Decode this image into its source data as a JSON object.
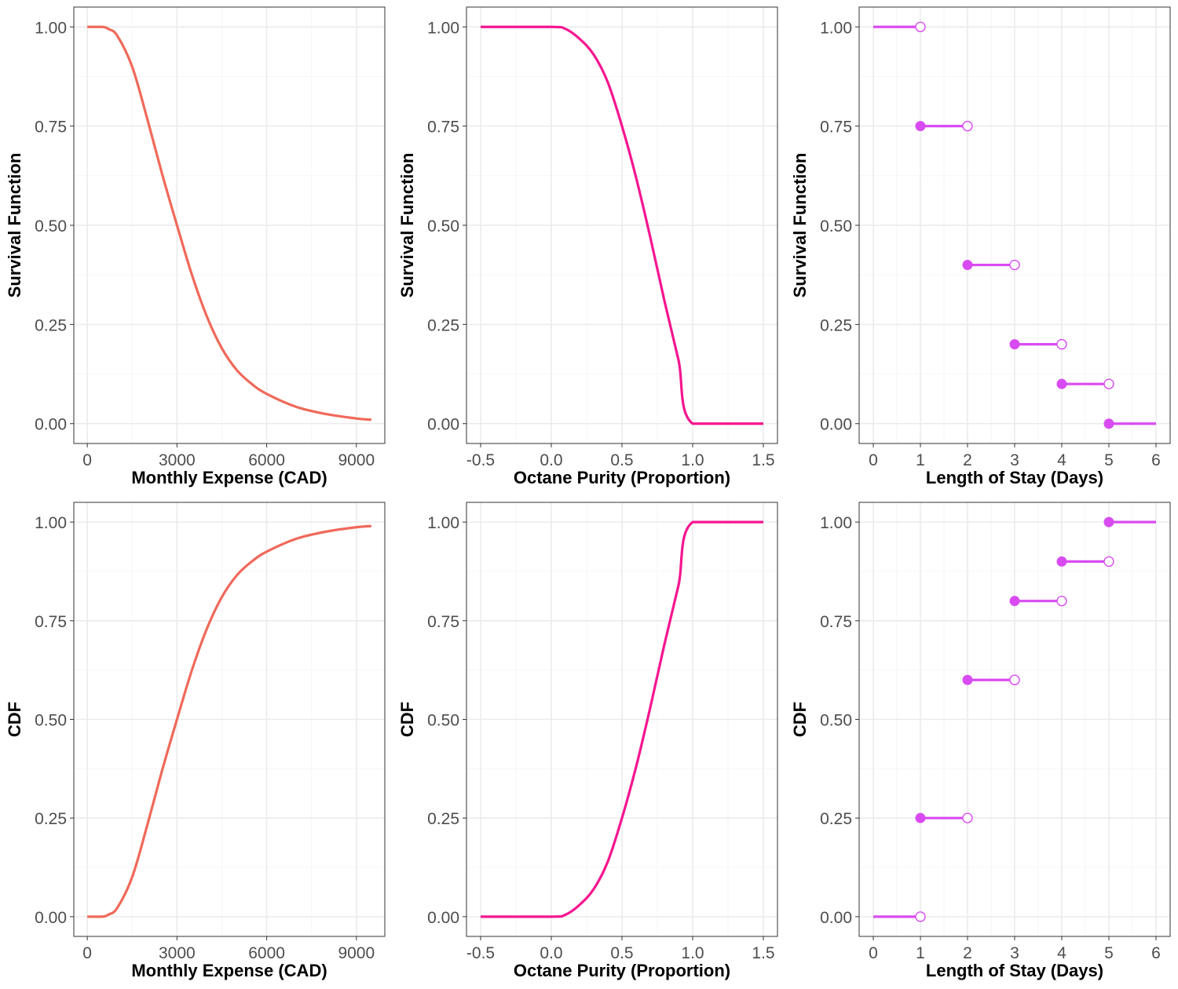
{
  "chart_data": [
    {
      "type": "line",
      "panel": "top-left",
      "xlabel": "Monthly Expense (CAD)",
      "ylabel": "Survival Function",
      "xlim": [
        -450,
        9950
      ],
      "ylim": [
        -0.05,
        1.05
      ],
      "xticks": [
        0,
        3000,
        6000,
        9000
      ],
      "xtick_labels": [
        "0",
        "3000",
        "6000",
        "9000"
      ],
      "yticks": [
        0,
        0.25,
        0.5,
        0.75,
        1
      ],
      "ytick_labels": [
        "0.00",
        "0.25",
        "0.50",
        "0.75",
        "1.00"
      ],
      "color": "#F0695A",
      "grid": true,
      "series": [
        {
          "x": [
            0,
            500,
            700,
            1000,
            1500,
            2000,
            2500,
            3000,
            3500,
            4000,
            4500,
            5000,
            5500,
            6000,
            7000,
            8000,
            9000,
            9500
          ],
          "y": [
            1.0,
            1.0,
            0.995,
            0.978,
            0.9,
            0.77,
            0.63,
            0.5,
            0.375,
            0.27,
            0.19,
            0.135,
            0.1,
            0.075,
            0.042,
            0.024,
            0.013,
            0.01
          ]
        }
      ]
    },
    {
      "type": "line",
      "panel": "top-middle",
      "xlabel": "Octane Purity (Proportion)",
      "ylabel": "Survival Function",
      "xlim": [
        -0.6,
        1.6
      ],
      "ylim": [
        -0.05,
        1.05
      ],
      "xticks": [
        -0.5,
        0,
        0.5,
        1,
        1.5
      ],
      "xtick_labels": [
        "-0.5",
        "0.0",
        "0.5",
        "1.0",
        "1.5"
      ],
      "yticks": [
        0,
        0.25,
        0.5,
        0.75,
        1
      ],
      "ytick_labels": [
        "0.00",
        "0.25",
        "0.50",
        "0.75",
        "1.00"
      ],
      "color": "#F5168F",
      "grid": true,
      "series": [
        {
          "x": [
            -0.5,
            0,
            0.1,
            0.2,
            0.3,
            0.4,
            0.5,
            0.6,
            0.7,
            0.8,
            0.9,
            1.0,
            1.5
          ],
          "y": [
            1.0,
            1.0,
            0.995,
            0.97,
            0.93,
            0.86,
            0.75,
            0.62,
            0.47,
            0.31,
            0.16,
            0.0,
            0.0
          ]
        }
      ]
    },
    {
      "type": "step",
      "panel": "top-right",
      "xlabel": "Length of Stay (Days)",
      "ylabel": "Survival Function",
      "xlim": [
        -0.3,
        6.3
      ],
      "ylim": [
        -0.05,
        1.05
      ],
      "xticks": [
        0,
        1,
        2,
        3,
        4,
        5,
        6
      ],
      "xtick_labels": [
        "0",
        "1",
        "2",
        "3",
        "4",
        "5",
        "6"
      ],
      "yticks": [
        0,
        0.25,
        0.5,
        0.75,
        1
      ],
      "ytick_labels": [
        "0.00",
        "0.25",
        "0.50",
        "0.75",
        "1.00"
      ],
      "color": "#D94BF2",
      "grid": true,
      "steps": [
        {
          "x0": 0,
          "x1": 1,
          "y": 1.0,
          "start_closed": false,
          "end_open": true
        },
        {
          "x0": 1,
          "x1": 2,
          "y": 0.75,
          "start_closed": true,
          "end_open": true
        },
        {
          "x0": 2,
          "x1": 3,
          "y": 0.4,
          "start_closed": true,
          "end_open": true
        },
        {
          "x0": 3,
          "x1": 4,
          "y": 0.2,
          "start_closed": true,
          "end_open": true
        },
        {
          "x0": 4,
          "x1": 5,
          "y": 0.1,
          "start_closed": true,
          "end_open": true
        },
        {
          "x0": 5,
          "x1": 6,
          "y": 0.0,
          "start_closed": true,
          "end_open": false
        }
      ]
    },
    {
      "type": "line",
      "panel": "bottom-left",
      "xlabel": "Monthly Expense (CAD)",
      "ylabel": "CDF",
      "xlim": [
        -450,
        9950
      ],
      "ylim": [
        -0.05,
        1.05
      ],
      "xticks": [
        0,
        3000,
        6000,
        9000
      ],
      "xtick_labels": [
        "0",
        "3000",
        "6000",
        "9000"
      ],
      "yticks": [
        0,
        0.25,
        0.5,
        0.75,
        1
      ],
      "ytick_labels": [
        "0.00",
        "0.25",
        "0.50",
        "0.75",
        "1.00"
      ],
      "color": "#F0695A",
      "grid": true,
      "series": [
        {
          "x": [
            0,
            500,
            700,
            1000,
            1500,
            2000,
            2500,
            3000,
            3500,
            4000,
            4500,
            5000,
            5500,
            6000,
            7000,
            8000,
            9000,
            9500
          ],
          "y": [
            0.0,
            0.0,
            0.005,
            0.022,
            0.1,
            0.23,
            0.37,
            0.5,
            0.625,
            0.73,
            0.81,
            0.865,
            0.9,
            0.925,
            0.958,
            0.976,
            0.987,
            0.99
          ]
        }
      ]
    },
    {
      "type": "line",
      "panel": "bottom-middle",
      "xlabel": "Octane Purity (Proportion)",
      "ylabel": "CDF",
      "xlim": [
        -0.6,
        1.6
      ],
      "ylim": [
        -0.05,
        1.05
      ],
      "xticks": [
        -0.5,
        0,
        0.5,
        1,
        1.5
      ],
      "xtick_labels": [
        "-0.5",
        "0.0",
        "0.5",
        "1.0",
        "1.5"
      ],
      "yticks": [
        0,
        0.25,
        0.5,
        0.75,
        1
      ],
      "ytick_labels": [
        "0.00",
        "0.25",
        "0.50",
        "0.75",
        "1.00"
      ],
      "color": "#F5168F",
      "grid": true,
      "series": [
        {
          "x": [
            -0.5,
            0,
            0.1,
            0.2,
            0.3,
            0.4,
            0.5,
            0.6,
            0.7,
            0.8,
            0.9,
            1.0,
            1.5
          ],
          "y": [
            0.0,
            0.0,
            0.005,
            0.03,
            0.07,
            0.14,
            0.25,
            0.38,
            0.53,
            0.69,
            0.84,
            1.0,
            1.0
          ]
        }
      ]
    },
    {
      "type": "step",
      "panel": "bottom-right",
      "xlabel": "Length of Stay (Days)",
      "ylabel": "CDF",
      "xlim": [
        -0.3,
        6.3
      ],
      "ylim": [
        -0.05,
        1.05
      ],
      "xticks": [
        0,
        1,
        2,
        3,
        4,
        5,
        6
      ],
      "xtick_labels": [
        "0",
        "1",
        "2",
        "3",
        "4",
        "5",
        "6"
      ],
      "yticks": [
        0,
        0.25,
        0.5,
        0.75,
        1
      ],
      "ytick_labels": [
        "0.00",
        "0.25",
        "0.50",
        "0.75",
        "1.00"
      ],
      "color": "#D94BF2",
      "grid": true,
      "steps": [
        {
          "x0": 0,
          "x1": 1,
          "y": 0.0,
          "start_closed": false,
          "end_open": true
        },
        {
          "x0": 1,
          "x1": 2,
          "y": 0.25,
          "start_closed": true,
          "end_open": true
        },
        {
          "x0": 2,
          "x1": 3,
          "y": 0.6,
          "start_closed": true,
          "end_open": true
        },
        {
          "x0": 3,
          "x1": 4,
          "y": 0.8,
          "start_closed": true,
          "end_open": true
        },
        {
          "x0": 4,
          "x1": 5,
          "y": 0.9,
          "start_closed": true,
          "end_open": true
        },
        {
          "x0": 5,
          "x1": 6,
          "y": 1.0,
          "start_closed": true,
          "end_open": false
        }
      ]
    }
  ]
}
